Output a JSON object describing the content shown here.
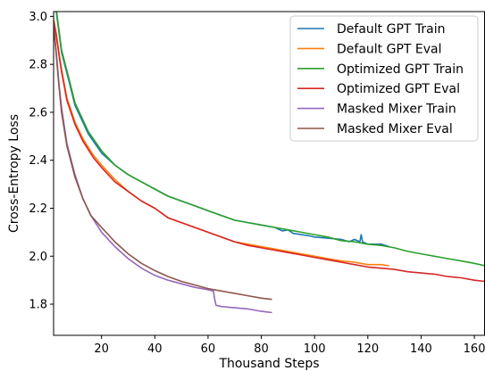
{
  "chart_data": {
    "type": "line",
    "title": "",
    "xlabel": "Thousand Steps",
    "ylabel": "Cross-Entropy Loss",
    "xlim": [
      2,
      164
    ],
    "ylim": [
      1.67,
      3.02
    ],
    "xticks": [
      20,
      40,
      60,
      80,
      100,
      120,
      140,
      160
    ],
    "yticks": [
      1.8,
      2.0,
      2.2,
      2.4,
      2.6,
      2.8,
      3.0
    ],
    "grid": false,
    "legend_position": "top-right",
    "series": [
      {
        "name": "Default GPT Train",
        "color": "#1f77b4",
        "points": [
          [
            2,
            3.05
          ],
          [
            3,
            3.02
          ],
          [
            5,
            2.85
          ],
          [
            8,
            2.72
          ],
          [
            10,
            2.63
          ],
          [
            15,
            2.51
          ],
          [
            20,
            2.43
          ],
          [
            25,
            2.38
          ],
          [
            30,
            2.34
          ],
          [
            35,
            2.31
          ],
          [
            40,
            2.28
          ],
          [
            45,
            2.25
          ],
          [
            50,
            2.23
          ],
          [
            55,
            2.21
          ],
          [
            60,
            2.19
          ],
          [
            65,
            2.17
          ],
          [
            70,
            2.15
          ],
          [
            75,
            2.14
          ],
          [
            80,
            2.13
          ],
          [
            85,
            2.12
          ],
          [
            88,
            2.105
          ],
          [
            90,
            2.11
          ],
          [
            92,
            2.095
          ],
          [
            95,
            2.09
          ],
          [
            98,
            2.085
          ],
          [
            100,
            2.08
          ],
          [
            105,
            2.075
          ],
          [
            110,
            2.07
          ],
          [
            113,
            2.06
          ],
          [
            115,
            2.07
          ],
          [
            117,
            2.06
          ],
          [
            117.5,
            2.09
          ],
          [
            118,
            2.06
          ],
          [
            120,
            2.05
          ],
          [
            125,
            2.05
          ],
          [
            128,
            2.04
          ]
        ]
      },
      {
        "name": "Default GPT Eval",
        "color": "#ff7f0e",
        "points": [
          [
            2,
            2.99
          ],
          [
            3,
            2.93
          ],
          [
            4,
            2.85
          ],
          [
            5,
            2.78
          ],
          [
            7,
            2.66
          ],
          [
            10,
            2.56
          ],
          [
            13,
            2.49
          ],
          [
            17,
            2.42
          ],
          [
            20,
            2.38
          ],
          [
            25,
            2.32
          ],
          [
            30,
            2.27
          ],
          [
            35,
            2.23
          ],
          [
            40,
            2.2
          ],
          [
            45,
            2.16
          ],
          [
            50,
            2.14
          ],
          [
            55,
            2.12
          ],
          [
            60,
            2.1
          ],
          [
            65,
            2.08
          ],
          [
            70,
            2.06
          ],
          [
            75,
            2.05
          ],
          [
            80,
            2.04
          ],
          [
            85,
            2.03
          ],
          [
            90,
            2.02
          ],
          [
            95,
            2.01
          ],
          [
            100,
            2.0
          ],
          [
            105,
            1.99
          ],
          [
            110,
            1.98
          ],
          [
            115,
            1.975
          ],
          [
            120,
            1.965
          ],
          [
            125,
            1.965
          ],
          [
            128,
            1.96
          ]
        ]
      },
      {
        "name": "Optimized GPT Train",
        "color": "#2ca02c",
        "points": [
          [
            2,
            3.08
          ],
          [
            3,
            3.03
          ],
          [
            5,
            2.86
          ],
          [
            8,
            2.73
          ],
          [
            10,
            2.64
          ],
          [
            15,
            2.52
          ],
          [
            20,
            2.44
          ],
          [
            25,
            2.38
          ],
          [
            30,
            2.34
          ],
          [
            35,
            2.31
          ],
          [
            40,
            2.28
          ],
          [
            45,
            2.25
          ],
          [
            50,
            2.23
          ],
          [
            55,
            2.21
          ],
          [
            60,
            2.19
          ],
          [
            65,
            2.17
          ],
          [
            70,
            2.15
          ],
          [
            75,
            2.14
          ],
          [
            80,
            2.13
          ],
          [
            85,
            2.12
          ],
          [
            90,
            2.11
          ],
          [
            95,
            2.1
          ],
          [
            100,
            2.09
          ],
          [
            105,
            2.08
          ],
          [
            110,
            2.065
          ],
          [
            115,
            2.06
          ],
          [
            120,
            2.05
          ],
          [
            125,
            2.045
          ],
          [
            130,
            2.035
          ],
          [
            135,
            2.02
          ],
          [
            140,
            2.01
          ],
          [
            145,
            2.0
          ],
          [
            150,
            1.99
          ],
          [
            155,
            1.98
          ],
          [
            160,
            1.97
          ],
          [
            164,
            1.96
          ]
        ]
      },
      {
        "name": "Optimized GPT Eval",
        "color": "#d62728",
        "points": [
          [
            2,
            2.98
          ],
          [
            3,
            2.92
          ],
          [
            4,
            2.84
          ],
          [
            5,
            2.77
          ],
          [
            7,
            2.65
          ],
          [
            10,
            2.55
          ],
          [
            13,
            2.48
          ],
          [
            17,
            2.41
          ],
          [
            20,
            2.37
          ],
          [
            25,
            2.31
          ],
          [
            30,
            2.27
          ],
          [
            35,
            2.23
          ],
          [
            40,
            2.2
          ],
          [
            45,
            2.16
          ],
          [
            50,
            2.14
          ],
          [
            55,
            2.12
          ],
          [
            60,
            2.1
          ],
          [
            65,
            2.08
          ],
          [
            70,
            2.06
          ],
          [
            75,
            2.045
          ],
          [
            80,
            2.035
          ],
          [
            85,
            2.025
          ],
          [
            90,
            2.015
          ],
          [
            95,
            2.005
          ],
          [
            100,
            1.995
          ],
          [
            105,
            1.985
          ],
          [
            110,
            1.975
          ],
          [
            115,
            1.965
          ],
          [
            120,
            1.955
          ],
          [
            125,
            1.95
          ],
          [
            130,
            1.945
          ],
          [
            135,
            1.935
          ],
          [
            140,
            1.93
          ],
          [
            145,
            1.925
          ],
          [
            150,
            1.915
          ],
          [
            155,
            1.91
          ],
          [
            160,
            1.9
          ],
          [
            164,
            1.895
          ]
        ]
      },
      {
        "name": "Masked Mixer Train",
        "color": "#9467bd",
        "points": [
          [
            2,
            2.97
          ],
          [
            3,
            2.85
          ],
          [
            4,
            2.72
          ],
          [
            5,
            2.62
          ],
          [
            7,
            2.47
          ],
          [
            10,
            2.34
          ],
          [
            13,
            2.24
          ],
          [
            16,
            2.17
          ],
          [
            20,
            2.1
          ],
          [
            25,
            2.04
          ],
          [
            30,
            1.99
          ],
          [
            35,
            1.95
          ],
          [
            40,
            1.92
          ],
          [
            45,
            1.9
          ],
          [
            50,
            1.885
          ],
          [
            55,
            1.87
          ],
          [
            60,
            1.86
          ],
          [
            62,
            1.855
          ],
          [
            62.5,
            1.82
          ],
          [
            63,
            1.795
          ],
          [
            65,
            1.79
          ],
          [
            70,
            1.785
          ],
          [
            75,
            1.78
          ],
          [
            80,
            1.77
          ],
          [
            84,
            1.765
          ]
        ]
      },
      {
        "name": "Masked Mixer Eval",
        "color": "#8c564b",
        "points": [
          [
            2,
            2.96
          ],
          [
            3,
            2.84
          ],
          [
            4,
            2.71
          ],
          [
            5,
            2.6
          ],
          [
            7,
            2.46
          ],
          [
            10,
            2.33
          ],
          [
            13,
            2.24
          ],
          [
            16,
            2.17
          ],
          [
            20,
            2.12
          ],
          [
            25,
            2.06
          ],
          [
            30,
            2.01
          ],
          [
            35,
            1.97
          ],
          [
            40,
            1.94
          ],
          [
            45,
            1.915
          ],
          [
            50,
            1.895
          ],
          [
            55,
            1.88
          ],
          [
            60,
            1.865
          ],
          [
            65,
            1.855
          ],
          [
            70,
            1.845
          ],
          [
            75,
            1.835
          ],
          [
            80,
            1.825
          ],
          [
            84,
            1.82
          ]
        ]
      }
    ]
  }
}
